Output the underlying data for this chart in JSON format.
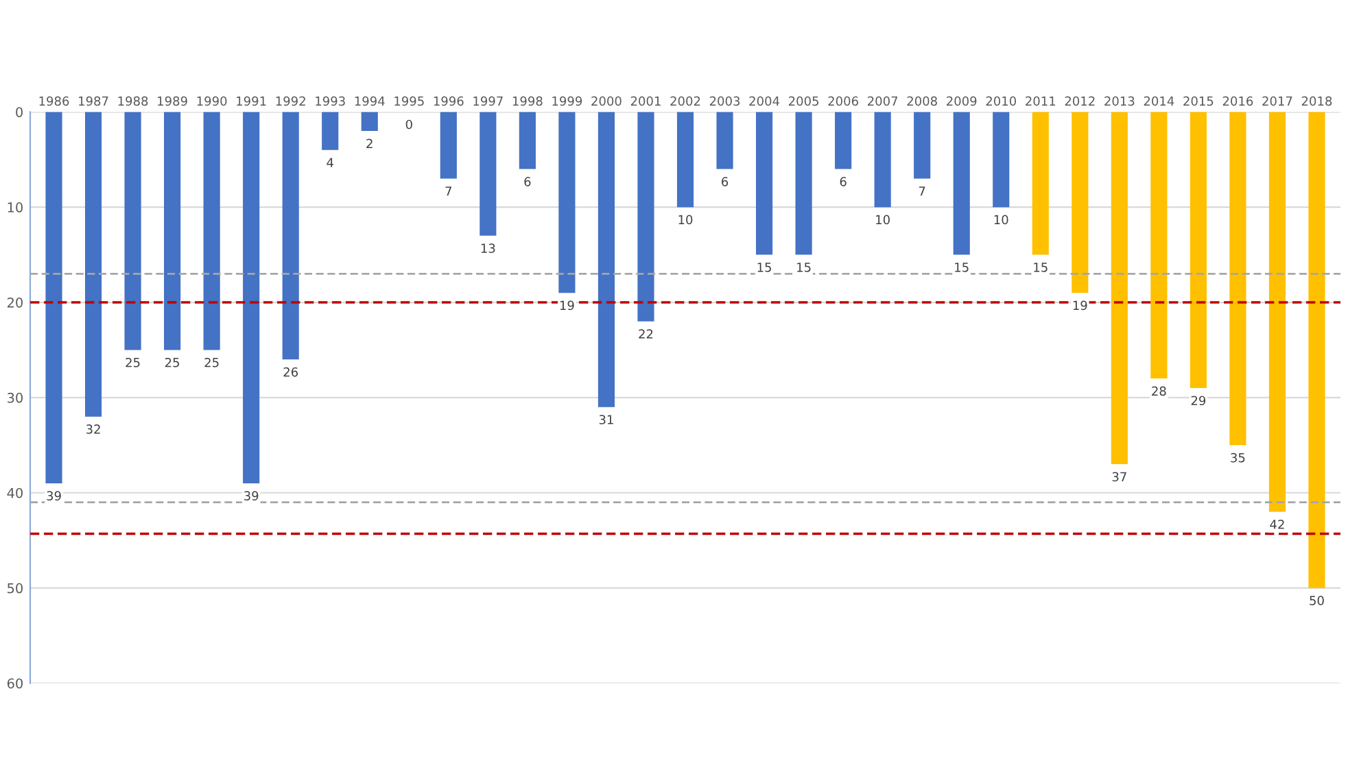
{
  "chart_data": {
    "type": "bar",
    "categories": [
      "1986",
      "1987",
      "1988",
      "1989",
      "1990",
      "1991",
      "1992",
      "1993",
      "1994",
      "1995",
      "1996",
      "1997",
      "1998",
      "1999",
      "2000",
      "2001",
      "2002",
      "2003",
      "2004",
      "2005",
      "2006",
      "2007",
      "2008",
      "2009",
      "2010",
      "2011",
      "2012",
      "2013",
      "2014",
      "2015",
      "2016",
      "2017",
      "2018"
    ],
    "values": [
      39,
      32,
      25,
      25,
      25,
      39,
      26,
      4,
      2,
      0,
      7,
      13,
      6,
      19,
      31,
      22,
      10,
      6,
      15,
      15,
      6,
      10,
      7,
      15,
      10,
      15,
      19,
      37,
      28,
      29,
      35,
      42,
      50
    ],
    "colors": [
      "#4472c4",
      "#4472c4",
      "#4472c4",
      "#4472c4",
      "#4472c4",
      "#4472c4",
      "#4472c4",
      "#4472c4",
      "#4472c4",
      "#4472c4",
      "#4472c4",
      "#4472c4",
      "#4472c4",
      "#4472c4",
      "#4472c4",
      "#4472c4",
      "#4472c4",
      "#4472c4",
      "#4472c4",
      "#4472c4",
      "#4472c4",
      "#4472c4",
      "#4472c4",
      "#4472c4",
      "#4472c4",
      "#ffc000",
      "#ffc000",
      "#ffc000",
      "#ffc000",
      "#ffc000",
      "#ffc000",
      "#ffc000",
      "#ffc000"
    ],
    "ylim": [
      60,
      0
    ],
    "yticks": [
      0,
      10,
      20,
      30,
      40,
      50,
      60
    ],
    "grid": "y",
    "data_labels": true,
    "ref_lines": [
      {
        "axis": "y",
        "value": 17,
        "color": "#a6a6a6",
        "line_style": "dashed"
      },
      {
        "axis": "y",
        "value": 41,
        "color": "#a6a6a6",
        "line_style": "dashed"
      },
      {
        "axis": "y",
        "value": 20,
        "color": "#c00000",
        "line_style": "dashed"
      },
      {
        "axis": "y",
        "value": 44.3,
        "color": "#c00000",
        "line_style": "dashed"
      }
    ]
  }
}
